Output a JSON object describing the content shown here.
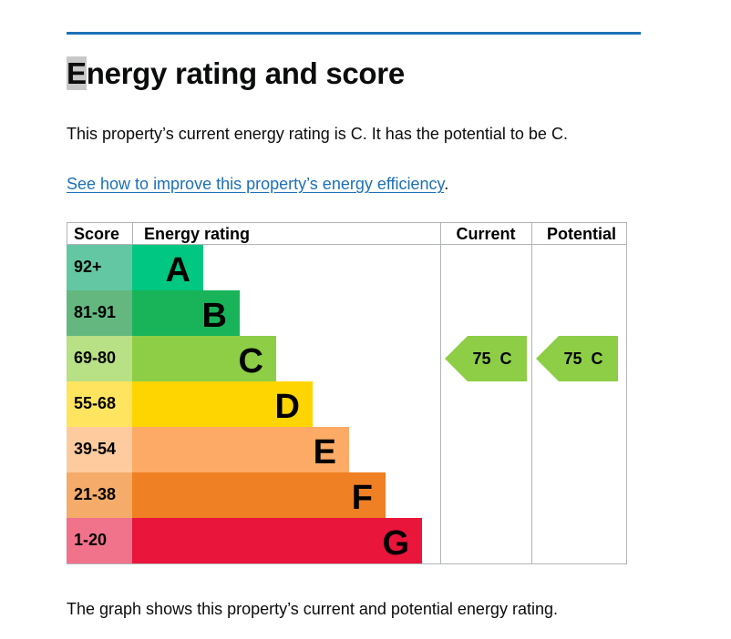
{
  "page": {
    "title_first_letter": "E",
    "title_rest": "nergy rating and score",
    "summary": "This property’s current energy rating is C. It has the potential to be C.",
    "improve_link": "See how to improve this property’s energy efficiency",
    "improve_suffix": ".",
    "footer": "The graph shows this property’s current and potential energy rating."
  },
  "colors": {
    "link": "#1d70b8",
    "rule": "#1d70b8"
  },
  "chart_data": {
    "type": "table",
    "headers": {
      "score": "Score",
      "rating": "Energy rating",
      "current": "Current",
      "potential": "Potential"
    },
    "bands": [
      {
        "score": "92+",
        "letter": "A",
        "color": "#00c781",
        "score_bg": "#64c7a4"
      },
      {
        "score": "81-91",
        "letter": "B",
        "color": "#19b459",
        "score_bg": "#64b87f"
      },
      {
        "score": "69-80",
        "letter": "C",
        "color": "#8dce46",
        "score_bg": "#b8e085"
      },
      {
        "score": "55-68",
        "letter": "D",
        "color": "#ffd500",
        "score_bg": "#ffe45f"
      },
      {
        "score": "39-54",
        "letter": "E",
        "color": "#fcaa65",
        "score_bg": "#fecb9e"
      },
      {
        "score": "21-38",
        "letter": "F",
        "color": "#ef8023",
        "score_bg": "#f5ab6a"
      },
      {
        "score": "1-20",
        "letter": "G",
        "color": "#e9153b",
        "score_bg": "#f0728b"
      }
    ],
    "current": {
      "score": 75,
      "band": "C",
      "label": "75  C",
      "color": "#8dce46"
    },
    "potential": {
      "score": 75,
      "band": "C",
      "label": "75  C",
      "color": "#8dce46"
    }
  }
}
